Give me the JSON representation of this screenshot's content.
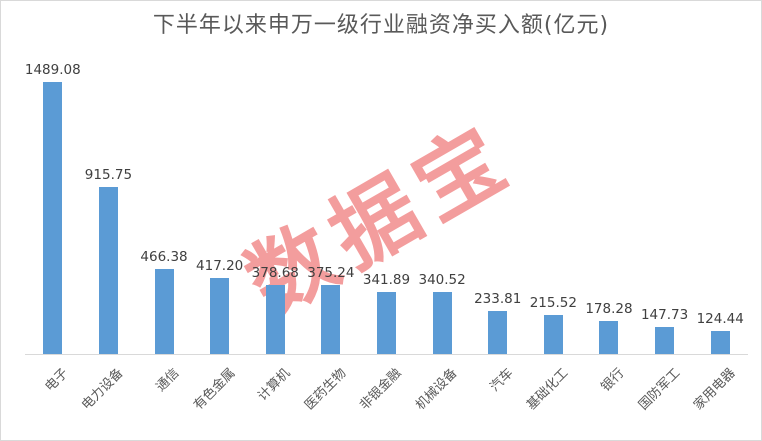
{
  "chart_data": {
    "type": "bar",
    "title": "下半年以来申万一级行业融资净买入额(亿元)",
    "categories": [
      "电子",
      "电力设备",
      "通信",
      "有色金属",
      "计算机",
      "医药生物",
      "非银金融",
      "机械设备",
      "汽车",
      "基础化工",
      "银行",
      "国防军工",
      "家用电器"
    ],
    "values": [
      1489.08,
      915.75,
      466.38,
      417.2,
      378.68,
      375.24,
      341.89,
      340.52,
      233.81,
      215.52,
      178.28,
      147.73,
      124.44
    ],
    "value_labels": [
      "1489.08",
      "915.75",
      "466.38",
      "417.20",
      "378.68",
      "375.24",
      "341.89",
      "340.52",
      "233.81",
      "215.52",
      "178.28",
      "147.73",
      "124.44"
    ],
    "xlabel": "",
    "ylabel": "",
    "ylim": [
      0,
      1500
    ],
    "grid": false,
    "legend": "none",
    "bar_color": "#5B9BD5"
  },
  "watermark": {
    "text": "数据宝",
    "color": "#F28C8C"
  },
  "colors": {
    "background": "#FFFFFF",
    "border": "#D9D9D9",
    "axis_line": "#D9D9D9",
    "title_text": "#595959",
    "value_label_text": "#404040",
    "category_label_text": "#595959",
    "bar": "#5B9BD5",
    "watermark": "#F28C8C"
  }
}
